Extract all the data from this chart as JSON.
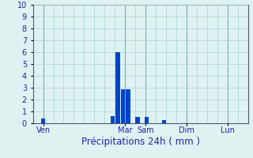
{
  "title": "",
  "xlabel": "Précipitations 24h ( mm )",
  "ylabel": "",
  "background_color": "#dff2f2",
  "bar_color": "#0044cc",
  "grid_color": "#b0d8d8",
  "axis_line_color": "#555577",
  "tick_label_color": "#2222aa",
  "xlabel_color": "#2222aa",
  "ylim": [
    0,
    10
  ],
  "yticks": [
    0,
    1,
    2,
    3,
    4,
    5,
    6,
    7,
    8,
    9,
    10
  ],
  "day_labels": [
    "Ven",
    "Mar",
    "Sam",
    "Dim",
    "Lun"
  ],
  "day_positions": [
    0.5,
    4.5,
    5.5,
    7.5,
    9.5
  ],
  "bar_positions": [
    0.5,
    3.9,
    4.15,
    4.4,
    4.65,
    5.1,
    5.55,
    6.4
  ],
  "bar_heights": [
    0.4,
    0.6,
    6.0,
    2.9,
    2.9,
    0.55,
    0.55,
    0.3
  ],
  "bar_width": 0.22,
  "xlim": [
    0,
    10.5
  ],
  "xlabel_fontsize": 8.5,
  "tick_fontsize": 7,
  "vline_color": "#7aadad",
  "vline_positions": [
    0.5,
    4.5,
    5.5,
    7.5,
    9.5
  ]
}
